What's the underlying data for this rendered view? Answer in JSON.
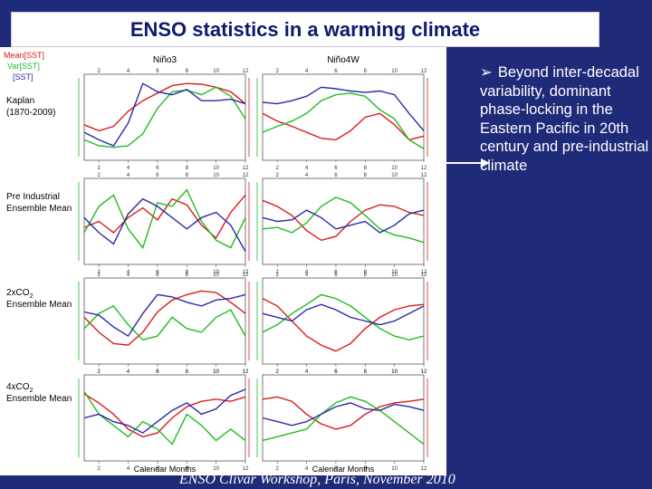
{
  "slide": {
    "title": "ENSO statistics in a warming climate",
    "bullet": "Beyond inter-decadal variability, dominant phase-locking in the Eastern Pacific in 20th century and pre-industrial climate",
    "footer": "ENSO Clivar Workshop, Paris, November 2010"
  },
  "colors": {
    "mean": "#dd1a1a",
    "var": "#22bb22",
    "skew": "#2a2aa8",
    "slide_bg": "#1f2a78",
    "arrow": "#ffffff"
  },
  "chart_data": {
    "type": "line",
    "legend": [
      "Mean[SST]",
      "Var[SST]",
      "[SST]"
    ],
    "columns": [
      "Niño3",
      "Niño4W"
    ],
    "rows": [
      "Kaplan (1870-2009)",
      "Pre Industrial Ensemble Mean",
      "2xCO2 Ensemble Mean",
      "4xCO2 Ensemble Mean"
    ],
    "xlabel": "Calendar Months",
    "x": [
      1,
      2,
      3,
      4,
      5,
      6,
      7,
      8,
      9,
      10,
      11,
      12
    ],
    "xticks": [
      "2",
      "4",
      "6",
      "8",
      "10",
      "12"
    ],
    "panels": [
      {
        "row": 0,
        "col": 0,
        "series": [
          {
            "name": "Mean[SST]",
            "values": [
              0.4,
              0.32,
              0.38,
              0.58,
              0.72,
              0.82,
              0.92,
              0.95,
              0.94,
              0.9,
              0.84,
              0.68
            ]
          },
          {
            "name": "Var[SST]",
            "values": [
              0.2,
              0.12,
              0.1,
              0.12,
              0.28,
              0.62,
              0.84,
              0.86,
              0.8,
              0.9,
              0.78,
              0.48
            ]
          },
          {
            "name": "[SST]",
            "values": [
              0.3,
              0.2,
              0.12,
              0.42,
              0.95,
              0.84,
              0.8,
              0.87,
              0.72,
              0.72,
              0.74,
              0.68
            ]
          }
        ]
      },
      {
        "row": 0,
        "col": 1,
        "series": [
          {
            "name": "Mean[SST]",
            "values": [
              0.55,
              0.45,
              0.38,
              0.3,
              0.22,
              0.2,
              0.32,
              0.5,
              0.55,
              0.4,
              0.2,
              0.25
            ]
          },
          {
            "name": "Var[SST]",
            "values": [
              0.3,
              0.38,
              0.45,
              0.55,
              0.72,
              0.8,
              0.82,
              0.78,
              0.6,
              0.48,
              0.2,
              0.08
            ]
          },
          {
            "name": "[SST]",
            "values": [
              0.7,
              0.68,
              0.72,
              0.78,
              0.9,
              0.88,
              0.85,
              0.83,
              0.85,
              0.8,
              0.55,
              0.32
            ]
          }
        ]
      },
      {
        "row": 1,
        "col": 0,
        "series": [
          {
            "name": "Mean[SST]",
            "values": [
              0.42,
              0.5,
              0.35,
              0.55,
              0.68,
              0.52,
              0.8,
              0.72,
              0.45,
              0.28,
              0.62,
              0.85
            ]
          },
          {
            "name": "Var[SST]",
            "values": [
              0.35,
              0.7,
              0.85,
              0.4,
              0.15,
              0.75,
              0.7,
              0.92,
              0.5,
              0.25,
              0.15,
              0.55
            ]
          },
          {
            "name": "[SST]",
            "values": [
              0.55,
              0.35,
              0.2,
              0.6,
              0.8,
              0.7,
              0.55,
              0.4,
              0.55,
              0.62,
              0.45,
              0.1
            ]
          }
        ]
      },
      {
        "row": 1,
        "col": 1,
        "series": [
          {
            "name": "Mean[SST]",
            "values": [
              0.78,
              0.7,
              0.58,
              0.38,
              0.25,
              0.3,
              0.5,
              0.65,
              0.72,
              0.7,
              0.62,
              0.58
            ]
          },
          {
            "name": "Var[SST]",
            "values": [
              0.4,
              0.42,
              0.35,
              0.48,
              0.7,
              0.82,
              0.75,
              0.58,
              0.4,
              0.32,
              0.28,
              0.22
            ]
          },
          {
            "name": "[SST]",
            "values": [
              0.55,
              0.5,
              0.52,
              0.65,
              0.55,
              0.4,
              0.45,
              0.5,
              0.35,
              0.45,
              0.6,
              0.65
            ]
          }
        ]
      },
      {
        "row": 2,
        "col": 0,
        "series": [
          {
            "name": "Mean[SST]",
            "values": [
              0.55,
              0.35,
              0.2,
              0.18,
              0.35,
              0.62,
              0.78,
              0.85,
              0.9,
              0.88,
              0.75,
              0.6
            ]
          },
          {
            "name": "Var[SST]",
            "values": [
              0.4,
              0.6,
              0.7,
              0.45,
              0.25,
              0.3,
              0.55,
              0.4,
              0.35,
              0.55,
              0.65,
              0.3
            ]
          },
          {
            "name": "[SST]",
            "values": [
              0.62,
              0.58,
              0.42,
              0.3,
              0.6,
              0.85,
              0.82,
              0.75,
              0.7,
              0.78,
              0.8,
              0.85
            ]
          }
        ]
      },
      {
        "row": 2,
        "col": 1,
        "series": [
          {
            "name": "Mean[SST]",
            "values": [
              0.8,
              0.7,
              0.5,
              0.3,
              0.18,
              0.1,
              0.2,
              0.4,
              0.55,
              0.65,
              0.7,
              0.72
            ]
          },
          {
            "name": "Var[SST]",
            "values": [
              0.35,
              0.45,
              0.6,
              0.72,
              0.85,
              0.8,
              0.7,
              0.55,
              0.4,
              0.3,
              0.25,
              0.3
            ]
          },
          {
            "name": "[SST]",
            "values": [
              0.6,
              0.55,
              0.5,
              0.65,
              0.72,
              0.65,
              0.55,
              0.5,
              0.45,
              0.5,
              0.6,
              0.7
            ]
          }
        ]
      },
      {
        "row": 3,
        "col": 0,
        "series": [
          {
            "name": "Mean[SST]",
            "values": [
              0.82,
              0.7,
              0.55,
              0.35,
              0.25,
              0.3,
              0.5,
              0.65,
              0.72,
              0.75,
              0.72,
              0.78
            ]
          },
          {
            "name": "Var[SST]",
            "values": [
              0.85,
              0.55,
              0.4,
              0.25,
              0.45,
              0.35,
              0.15,
              0.55,
              0.4,
              0.2,
              0.35,
              0.2
            ]
          },
          {
            "name": "[SST]",
            "values": [
              0.5,
              0.55,
              0.45,
              0.4,
              0.3,
              0.45,
              0.6,
              0.7,
              0.55,
              0.62,
              0.8,
              0.88
            ]
          }
        ]
      },
      {
        "row": 3,
        "col": 1,
        "series": [
          {
            "name": "Mean[SST]",
            "values": [
              0.75,
              0.78,
              0.72,
              0.55,
              0.42,
              0.35,
              0.4,
              0.55,
              0.65,
              0.7,
              0.72,
              0.75
            ]
          },
          {
            "name": "Var[SST]",
            "values": [
              0.2,
              0.25,
              0.3,
              0.35,
              0.55,
              0.7,
              0.78,
              0.72,
              0.6,
              0.45,
              0.3,
              0.15
            ]
          },
          {
            "name": "[SST]",
            "values": [
              0.5,
              0.45,
              0.4,
              0.45,
              0.55,
              0.65,
              0.7,
              0.62,
              0.6,
              0.68,
              0.65,
              0.6
            ]
          }
        ]
      }
    ]
  }
}
